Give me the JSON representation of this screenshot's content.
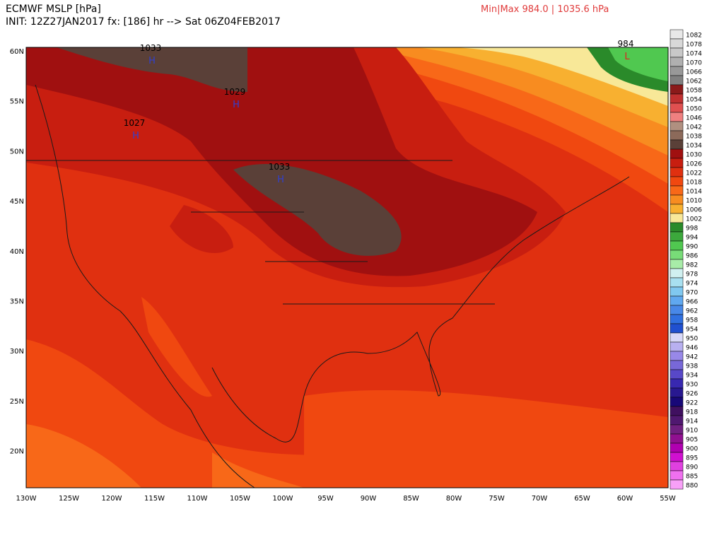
{
  "header": {
    "title": "ECMWF MSLP [hPa]",
    "init": "INIT: 12Z27JAN2017 fx: [186] hr --> Sat 06Z04FEB2017",
    "minmax": "Min|Max 984.0 | 1035.6 hPa"
  },
  "map": {
    "lat_labels": [
      "60N",
      "55N",
      "50N",
      "45N",
      "40N",
      "35N",
      "30N",
      "25N",
      "20N"
    ],
    "lon_labels": [
      "130W",
      "125W",
      "120W",
      "115W",
      "110W",
      "105W",
      "100W",
      "95W",
      "90W",
      "85W",
      "80W",
      "75W",
      "70W",
      "65W",
      "60W",
      "55W"
    ],
    "centers": [
      {
        "value": "1033",
        "symbol": "H"
      },
      {
        "value": "1029",
        "symbol": "H"
      },
      {
        "value": "1027",
        "symbol": "H"
      },
      {
        "value": "1033",
        "symbol": "H"
      },
      {
        "value": "984",
        "symbol": "L"
      }
    ]
  },
  "colorbar": {
    "levels": [
      1082,
      1078,
      1074,
      1070,
      1066,
      1062,
      1058,
      1054,
      1050,
      1046,
      1042,
      1038,
      1034,
      1030,
      1026,
      1022,
      1018,
      1014,
      1010,
      1006,
      1002,
      998,
      994,
      990,
      986,
      982,
      978,
      974,
      970,
      966,
      962,
      958,
      954,
      950,
      946,
      942,
      938,
      934,
      930,
      926,
      922,
      918,
      914,
      910,
      905,
      900,
      895,
      890,
      885,
      880
    ],
    "colors": [
      "#e8e8e8",
      "#d8d8d8",
      "#c8c8c8",
      "#b0b0b0",
      "#989898",
      "#808080",
      "#8b1a1a",
      "#c03030",
      "#e05050",
      "#f08080",
      "#b09080",
      "#8c6a5a",
      "#5a4038",
      "#a01010",
      "#c81e10",
      "#e03010",
      "#f04810",
      "#f86818",
      "#f88c20",
      "#f8b030",
      "#f8e898",
      "#2a8a2a",
      "#3ca83c",
      "#50c850",
      "#78dc78",
      "#a8eca8",
      "#d0f0f0",
      "#a8e0f0",
      "#80c8f0",
      "#60a8f0",
      "#4888e8",
      "#3070e0",
      "#2050d0",
      "#d8d8f8",
      "#b8b0f0",
      "#9888e8",
      "#7868d8",
      "#5848c8",
      "#3828b0",
      "#281890",
      "#180878",
      "#401060",
      "#501870",
      "#702080",
      "#901090",
      "#b000b0",
      "#d010d0",
      "#e040e0",
      "#f070f0",
      "#f8a0f8"
    ]
  }
}
